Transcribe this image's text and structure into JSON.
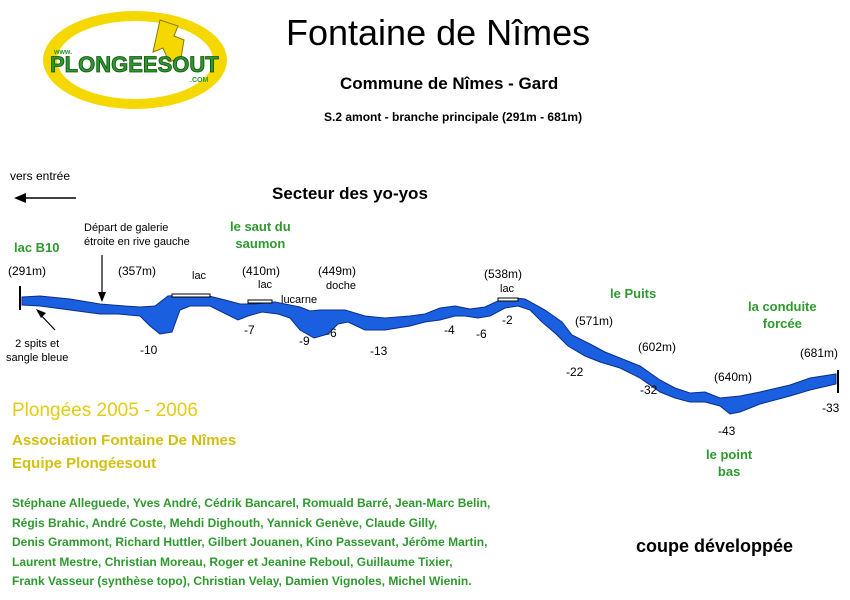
{
  "header": {
    "title": "Fontaine de Nîmes",
    "subtitle": "Commune de Nîmes - Gard",
    "section": "S.2 amont - branche principale (291m - 681m)"
  },
  "logo": {
    "text": "PLONGEESOUT",
    "site_top": "www.",
    "site_bottom": ".COM"
  },
  "sector_title": "Secteur des yo-yos",
  "direction_label": "vers entrée",
  "annotations": {
    "lac_b10": "lac B10",
    "depart": [
      "Départ de galerie",
      "étroite en rive gauche"
    ],
    "saut": [
      "le saut du",
      "saumon"
    ],
    "lac1": "lac",
    "lac2": "lac",
    "lac3": "lac",
    "lucarne": "lucarne",
    "doche": "doche",
    "spits": [
      "2 spits et",
      "sangle bleue"
    ],
    "puits": "le Puits",
    "conduite": [
      "la conduite",
      "forcée"
    ],
    "point_bas": [
      "le point",
      "bas"
    ]
  },
  "distances": [
    "(291m)",
    "(357m)",
    "(410m)",
    "(449m)",
    "(538m)",
    "(571m)",
    "(602m)",
    "(640m)",
    "(681m)"
  ],
  "depths": [
    "-10",
    "-7",
    "-9",
    "-6",
    "-13",
    "-4",
    "-6",
    "-2",
    "-22",
    "-32",
    "-43",
    "-33"
  ],
  "colors": {
    "cave": "#1a5fe0",
    "green_text": "#2e9a2e",
    "yellow_text": "#e3cc12",
    "logo_yellow": "#f5d800"
  },
  "credits": {
    "plongees": "Plongées 2005 - 2006",
    "association": "Association Fontaine De Nîmes",
    "equipe": "Equipe Plongéesout",
    "divers": [
      "Stéphane Alleguede, Yves André, Cédrik Bancarel, Romuald Barré, Jean-Marc Belin,",
      "Régis Brahic, André Coste, Mehdi Dighouth, Yannick Genève, Claude Gilly,",
      "Denis Grammont, Richard Huttler, Gilbert Jouanen, Kino Passevant, Jérôme Martin,",
      "Laurent Mestre, Christian Moreau,  Roger et Jeanine Reboul, Guillaume Tixier,",
      "Frank Vasseur (synthèse topo), Christian Velay, Damien Vignoles, Michel Wienin."
    ]
  },
  "footer_label": "coupe développée"
}
